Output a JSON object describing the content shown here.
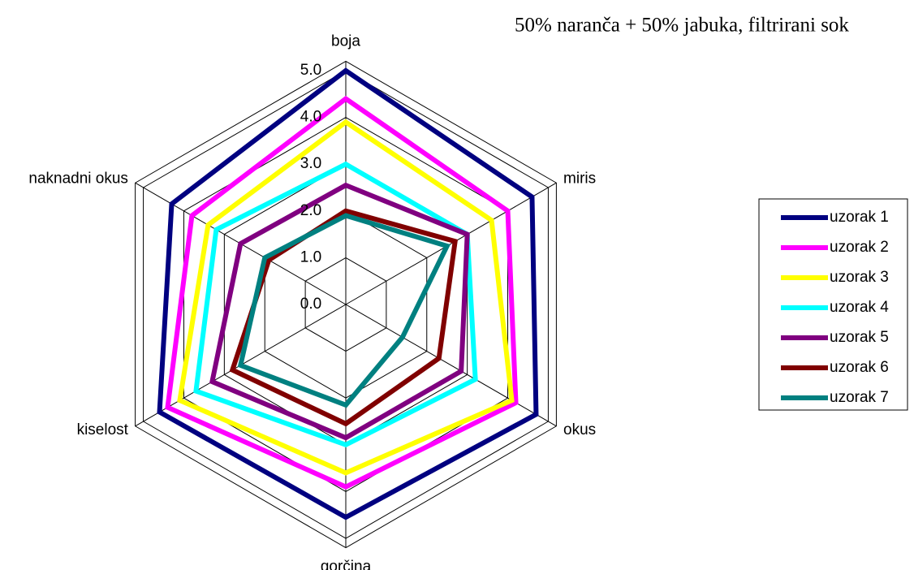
{
  "chart_data": {
    "type": "radar",
    "title": "50% naranča + 50% jabuka, filtrirani sok",
    "categories": [
      "boja",
      "miris",
      "okus",
      "gorčina",
      "kiselost",
      "naknadni okus"
    ],
    "rlim": [
      0,
      5
    ],
    "rticks": [
      {
        "value": 0,
        "label": "0.0"
      },
      {
        "value": 1,
        "label": "1.0"
      },
      {
        "value": 2,
        "label": "2.0"
      },
      {
        "value": 3,
        "label": "3.0"
      },
      {
        "value": 4,
        "label": "4.0"
      },
      {
        "value": 5,
        "label": "5.0"
      }
    ],
    "legend": "right",
    "series": [
      {
        "name": "uzorak 1",
        "color": "#000080",
        "values": [
          5.0,
          4.6,
          4.7,
          4.55,
          4.6,
          4.3
        ]
      },
      {
        "name": "uzorak 2",
        "color": "#ff00ff",
        "values": [
          4.4,
          4.0,
          4.2,
          3.9,
          4.4,
          3.8
        ]
      },
      {
        "name": "uzorak 3",
        "color": "#ffff00",
        "values": [
          3.9,
          3.6,
          4.1,
          3.6,
          4.1,
          3.4
        ]
      },
      {
        "name": "uzorak 4",
        "color": "#00ffff",
        "values": [
          3.0,
          3.0,
          3.2,
          3.0,
          3.7,
          3.2
        ]
      },
      {
        "name": "uzorak 5",
        "color": "#800080",
        "values": [
          2.55,
          3.0,
          2.85,
          2.85,
          3.3,
          2.6
        ]
      },
      {
        "name": "uzorak 6",
        "color": "#800000",
        "values": [
          2.0,
          2.7,
          2.3,
          2.55,
          2.8,
          1.9
        ]
      },
      {
        "name": "uzorak 7",
        "color": "#008080",
        "values": [
          1.9,
          2.5,
          1.4,
          2.15,
          2.6,
          2.0
        ]
      }
    ]
  }
}
